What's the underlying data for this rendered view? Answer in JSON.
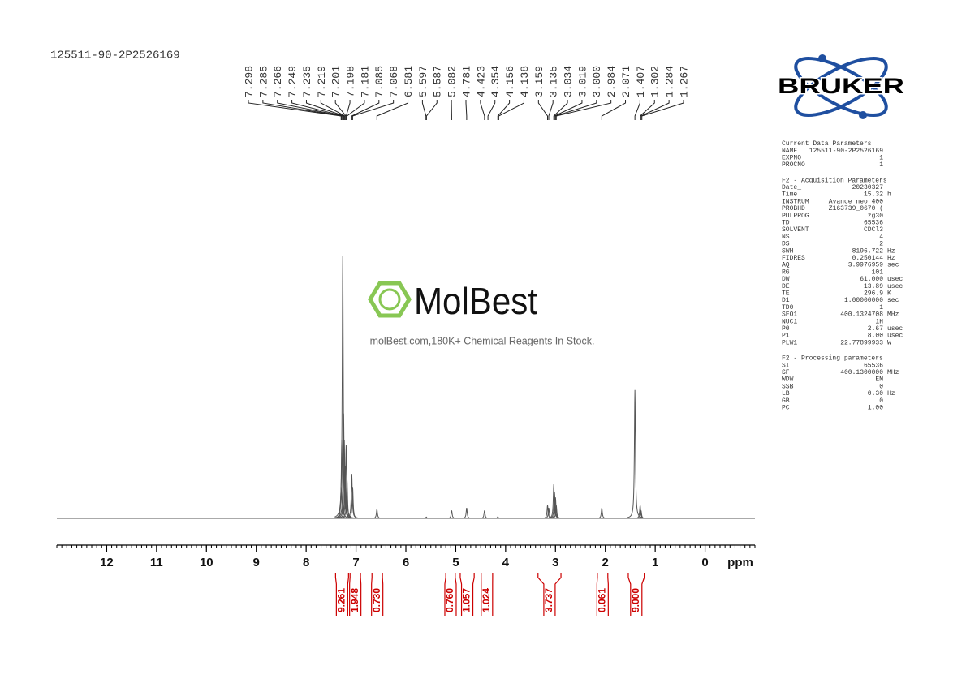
{
  "sample_id": "125511-90-2P2526169",
  "watermark": {
    "brand": "MolBest",
    "tagline": "molBest.com,180K+ Chemical Reagents In Stock."
  },
  "logo": "BRUKER",
  "parameters": [
    {
      "title": "Current Data Parameters",
      "rows": [
        [
          "NAME",
          "125511-90-2P2526169"
        ],
        [
          "EXPNO",
          "1"
        ],
        [
          "PROCNO",
          "1"
        ]
      ]
    },
    {
      "title": "F2 - Acquisition Parameters",
      "rows": [
        [
          "Date_",
          "20230327"
        ],
        [
          "Time",
          "15.32",
          "h"
        ],
        [
          "INSTRUM",
          "Avance neo 400"
        ],
        [
          "PROBHD",
          "Z163739_0670 ("
        ],
        [
          "PULPROG",
          "zg30"
        ],
        [
          "TD",
          "65536"
        ],
        [
          "SOLVENT",
          "CDCl3"
        ],
        [
          "NS",
          "4"
        ],
        [
          "DS",
          "2"
        ],
        [
          "SWH",
          "8196.722",
          "Hz"
        ],
        [
          "FIDRES",
          "0.250144",
          "Hz"
        ],
        [
          "AQ",
          "3.9976959",
          "sec"
        ],
        [
          "RG",
          "101"
        ],
        [
          "DW",
          "61.000",
          "usec"
        ],
        [
          "DE",
          "13.89",
          "usec"
        ],
        [
          "TE",
          "296.9",
          "K"
        ],
        [
          "D1",
          "1.00000000",
          "sec"
        ],
        [
          "TD0",
          "1"
        ],
        [
          "SFO1",
          "400.1324708",
          "MHz"
        ],
        [
          "NUC1",
          "1H"
        ],
        [
          "P0",
          "2.67",
          "usec"
        ],
        [
          "P1",
          "8.00",
          "usec"
        ],
        [
          "PLW1",
          "22.77899933",
          "W"
        ]
      ]
    },
    {
      "title": "F2 - Processing parameters",
      "rows": [
        [
          "SI",
          "65536"
        ],
        [
          "SF",
          "400.1300000",
          "MHz"
        ],
        [
          "WDW",
          "EM"
        ],
        [
          "SSB",
          "0"
        ],
        [
          "LB",
          "0.30",
          "Hz"
        ],
        [
          "GB",
          "0"
        ],
        [
          "PC",
          "1.00"
        ]
      ]
    }
  ],
  "chart_data": {
    "type": "nmr",
    "x_label": "ppm",
    "xlim": [
      13,
      -1
    ],
    "xticks": [
      12,
      11,
      10,
      9,
      8,
      7,
      6,
      5,
      4,
      3,
      2,
      1,
      0
    ],
    "ylim": [
      0,
      100
    ],
    "x": [
      7.298,
      7.285,
      7.266,
      7.249,
      7.235,
      7.219,
      7.198,
      7.181,
      7.085,
      7.068,
      6.581,
      5.59,
      5.082,
      4.781,
      4.423,
      4.156,
      3.159,
      3.135,
      3.034,
      3.019,
      3.0,
      2.984,
      2.071,
      1.407,
      1.302,
      1.284
    ],
    "values": [
      12,
      30,
      100,
      40,
      30,
      20,
      28,
      15,
      17,
      12,
      3.5,
      0.5,
      3,
      4,
      3,
      0.6,
      5,
      4,
      13,
      10,
      8,
      5,
      4,
      49,
      5,
      3
    ],
    "color": "#555555",
    "peak_picks": [
      7.298,
      7.285,
      7.266,
      7.249,
      7.235,
      7.219,
      7.201,
      7.198,
      7.181,
      7.085,
      7.068,
      6.581,
      5.597,
      5.587,
      5.082,
      4.781,
      4.423,
      4.354,
      4.156,
      4.138,
      3.159,
      3.135,
      3.034,
      3.019,
      {
        "value": 3,
        "label": "3.000"
      },
      2.984,
      2.071,
      1.407,
      1.302,
      1.284,
      1.267
    ],
    "integrals": {
      "color": "#cc0000",
      "ranges": [
        [
          7.41,
          7.15
        ],
        [
          7.12,
          6.91
        ],
        [
          6.68,
          6.47
        ],
        [
          5.2,
          5.01
        ],
        [
          4.91,
          4.63
        ],
        [
          4.49,
          4.26
        ],
        [
          3.35,
          2.89
        ],
        [
          2.16,
          1.95
        ],
        [
          1.54,
          1.22
        ]
      ],
      "values": [
        9.261,
        1.948,
        0.73,
        0.76,
        1.057,
        1.024,
        3.737,
        0.061,
        9.0
      ],
      "value_labels": [
        "9.261",
        "1.948",
        "0.730",
        "0.760",
        "1.057",
        "1.024",
        "3.737",
        "0.061",
        "9.000"
      ]
    }
  }
}
